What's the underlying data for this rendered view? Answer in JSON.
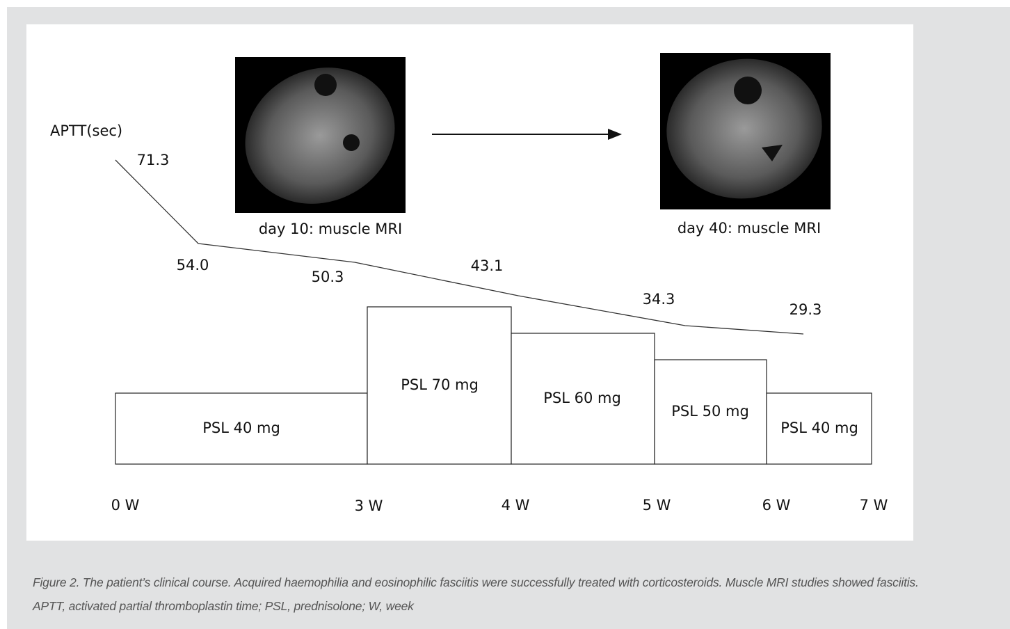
{
  "figure": {
    "y_label": "APTT(sec)",
    "aptt_labels": [
      "71.3",
      "54.0",
      "50.3",
      "43.1",
      "34.3",
      "29.3"
    ],
    "mri_captions": [
      "day 10: muscle MRI",
      "day 40: muscle MRI"
    ],
    "doses": [
      "PSL 40 mg",
      "PSL 70 mg",
      "PSL 60 mg",
      "PSL 50 mg",
      "PSL 40 mg"
    ],
    "weeks": [
      "0 W",
      "3 W",
      "4 W",
      "5 W",
      "6 W",
      "7 W"
    ]
  },
  "caption": "Figure 2. The patient’s clinical course. Acquired haemophilia and eosinophilic fasciitis were successfully treated with corticosteroids. Muscle MRI studies showed fasciitis. APTT, activated partial thromboplastin time; PSL, prednisolone; W, week"
}
